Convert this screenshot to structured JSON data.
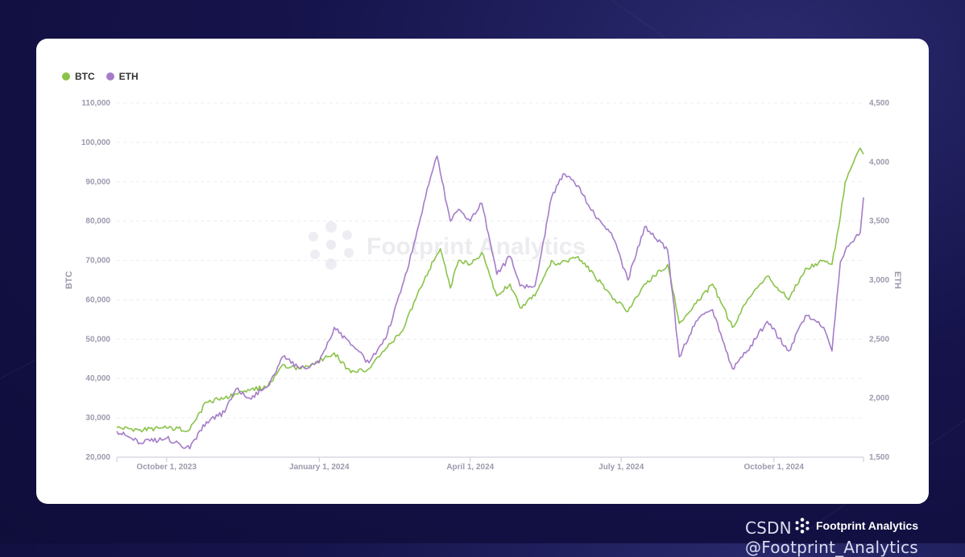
{
  "chart_data": {
    "type": "line",
    "x_ticks": [
      "October 1, 2023",
      "January 1, 2024",
      "April 1, 2024",
      "July 1, 2024",
      "October 1, 2024"
    ],
    "x_range": [
      "2023-09-01",
      "2024-11-24"
    ],
    "y_left": {
      "label": "BTC",
      "ticks": [
        "20,000",
        "30,000",
        "40,000",
        "50,000",
        "60,000",
        "70,000",
        "80,000",
        "90,000",
        "100,000",
        "110,000"
      ],
      "range": [
        20000,
        110000
      ]
    },
    "y_right": {
      "label": "ETH",
      "ticks": [
        "1,500",
        "2,000",
        "2,500",
        "3,000",
        "3,500",
        "4,000",
        "4,500"
      ],
      "range": [
        1500,
        4500
      ]
    },
    "grid": true,
    "legend_position": "top-left",
    "series": [
      {
        "name": "BTC",
        "axis": "left",
        "color": "#8bc34a",
        "points": [
          [
            "2023-09-01",
            27500
          ],
          [
            "2023-09-15",
            27000
          ],
          [
            "2023-10-01",
            27400
          ],
          [
            "2023-10-15",
            27000
          ],
          [
            "2023-10-25",
            34000
          ],
          [
            "2023-11-05",
            35000
          ],
          [
            "2023-11-20",
            37000
          ],
          [
            "2023-12-01",
            38000
          ],
          [
            "2023-12-10",
            43500
          ],
          [
            "2023-12-20",
            42500
          ],
          [
            "2024-01-01",
            44500
          ],
          [
            "2024-01-10",
            46500
          ],
          [
            "2024-01-20",
            41500
          ],
          [
            "2024-01-31",
            42500
          ],
          [
            "2024-02-10",
            47500
          ],
          [
            "2024-02-20",
            52000
          ],
          [
            "2024-02-28",
            60000
          ],
          [
            "2024-03-05",
            66000
          ],
          [
            "2024-03-14",
            73000
          ],
          [
            "2024-03-20",
            63000
          ],
          [
            "2024-03-25",
            70000
          ],
          [
            "2024-04-01",
            69000
          ],
          [
            "2024-04-08",
            72000
          ],
          [
            "2024-04-17",
            61000
          ],
          [
            "2024-04-25",
            64000
          ],
          [
            "2024-05-01",
            58000
          ],
          [
            "2024-05-10",
            61000
          ],
          [
            "2024-05-20",
            70000
          ],
          [
            "2024-05-25",
            69000
          ],
          [
            "2024-06-05",
            71000
          ],
          [
            "2024-06-15",
            66000
          ],
          [
            "2024-06-25",
            61000
          ],
          [
            "2024-07-05",
            57000
          ],
          [
            "2024-07-15",
            64000
          ],
          [
            "2024-07-29",
            69000
          ],
          [
            "2024-08-05",
            54000
          ],
          [
            "2024-08-15",
            59000
          ],
          [
            "2024-08-25",
            64000
          ],
          [
            "2024-09-06",
            53000
          ],
          [
            "2024-09-15",
            60000
          ],
          [
            "2024-09-27",
            66000
          ],
          [
            "2024-10-10",
            60000
          ],
          [
            "2024-10-20",
            68000
          ],
          [
            "2024-10-31",
            70000
          ],
          [
            "2024-11-05",
            69000
          ],
          [
            "2024-11-10",
            81000
          ],
          [
            "2024-11-13",
            90000
          ],
          [
            "2024-11-22",
            98500
          ],
          [
            "2024-11-24",
            97000
          ]
        ]
      },
      {
        "name": "ETH",
        "axis": "right",
        "color": "#a57cc9",
        "points": [
          [
            "2023-09-01",
            1720
          ],
          [
            "2023-09-15",
            1620
          ],
          [
            "2023-10-01",
            1660
          ],
          [
            "2023-10-15",
            1570
          ],
          [
            "2023-10-25",
            1800
          ],
          [
            "2023-11-05",
            1880
          ],
          [
            "2023-11-12",
            2080
          ],
          [
            "2023-11-20",
            2000
          ],
          [
            "2023-12-01",
            2100
          ],
          [
            "2023-12-10",
            2350
          ],
          [
            "2023-12-20",
            2250
          ],
          [
            "2024-01-01",
            2300
          ],
          [
            "2024-01-10",
            2600
          ],
          [
            "2024-01-20",
            2450
          ],
          [
            "2024-01-31",
            2300
          ],
          [
            "2024-02-10",
            2500
          ],
          [
            "2024-02-20",
            2950
          ],
          [
            "2024-02-28",
            3350
          ],
          [
            "2024-03-05",
            3700
          ],
          [
            "2024-03-12",
            4050
          ],
          [
            "2024-03-20",
            3500
          ],
          [
            "2024-03-25",
            3600
          ],
          [
            "2024-04-01",
            3500
          ],
          [
            "2024-04-08",
            3650
          ],
          [
            "2024-04-17",
            3050
          ],
          [
            "2024-04-25",
            3200
          ],
          [
            "2024-05-01",
            2950
          ],
          [
            "2024-05-10",
            2950
          ],
          [
            "2024-05-20",
            3700
          ],
          [
            "2024-05-27",
            3900
          ],
          [
            "2024-06-05",
            3800
          ],
          [
            "2024-06-15",
            3550
          ],
          [
            "2024-06-25",
            3400
          ],
          [
            "2024-07-05",
            3000
          ],
          [
            "2024-07-15",
            3450
          ],
          [
            "2024-07-29",
            3250
          ],
          [
            "2024-08-05",
            2350
          ],
          [
            "2024-08-15",
            2650
          ],
          [
            "2024-08-25",
            2750
          ],
          [
            "2024-09-06",
            2250
          ],
          [
            "2024-09-15",
            2400
          ],
          [
            "2024-09-27",
            2650
          ],
          [
            "2024-10-10",
            2400
          ],
          [
            "2024-10-20",
            2700
          ],
          [
            "2024-10-31",
            2600
          ],
          [
            "2024-11-05",
            2400
          ],
          [
            "2024-11-10",
            3150
          ],
          [
            "2024-11-13",
            3250
          ],
          [
            "2024-11-22",
            3400
          ],
          [
            "2024-11-24",
            3700
          ]
        ]
      }
    ]
  },
  "legend": {
    "btc": "BTC",
    "eth": "ETH"
  },
  "watermark": "Footprint Analytics",
  "footer": {
    "csdn": "CSDN @Footprint_Analytics",
    "brand": "Footprint Analytics"
  },
  "colors": {
    "btc": "#8bc34a",
    "eth": "#a57cc9",
    "background": "#15134a"
  }
}
